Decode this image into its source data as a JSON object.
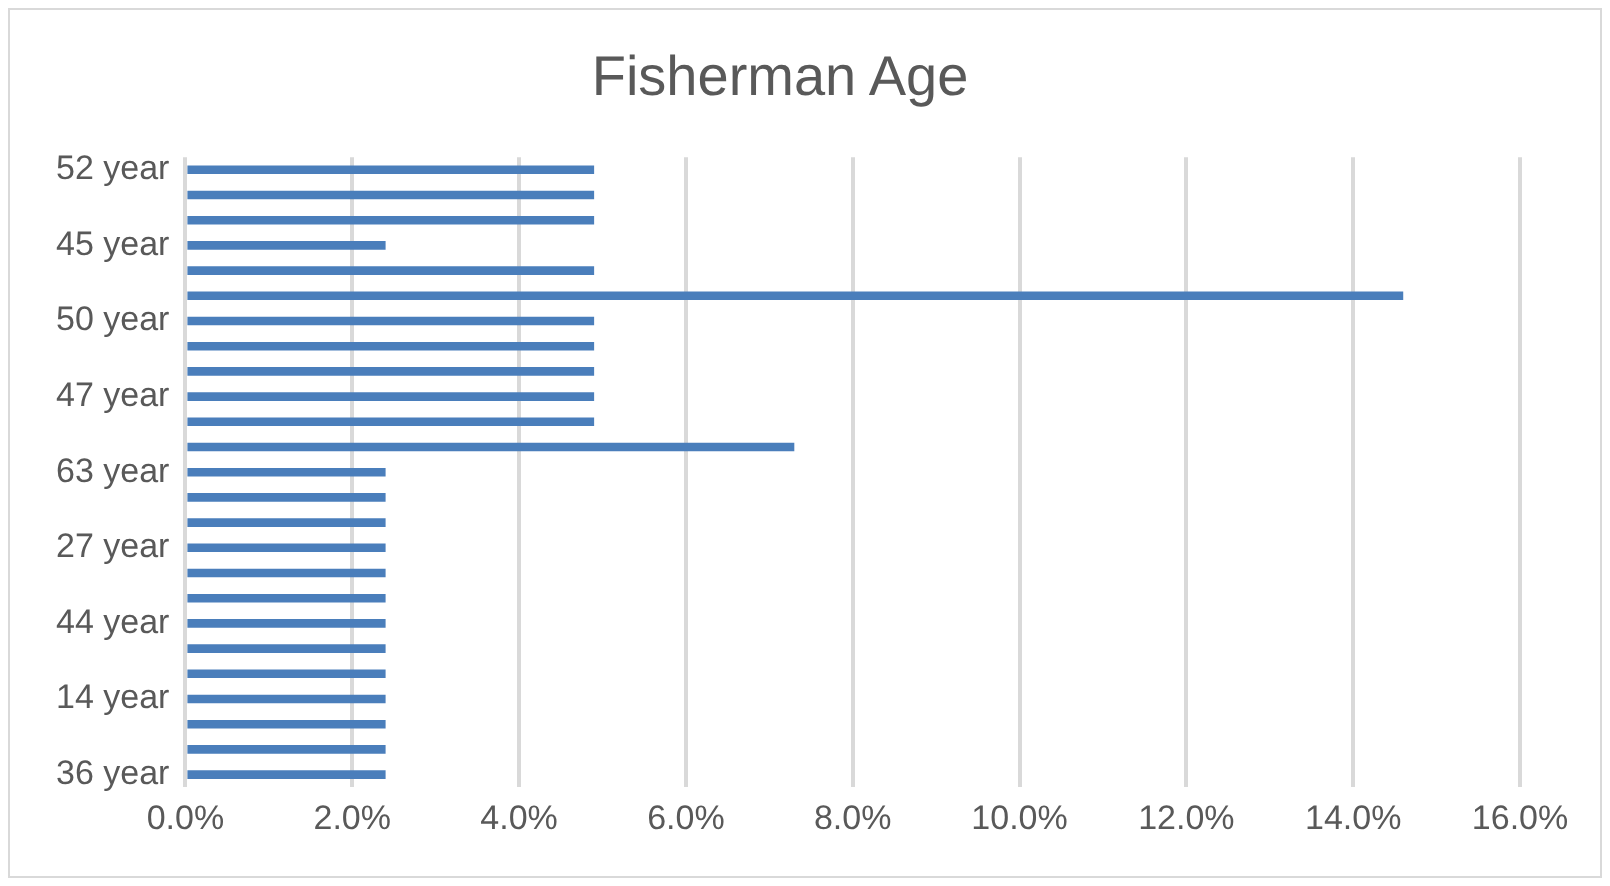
{
  "chart_data": {
    "type": "bar",
    "orientation": "horizontal",
    "title": "Fisherman Age",
    "categories": [
      "52 year",
      null,
      null,
      "45 year",
      null,
      null,
      "50 year",
      null,
      null,
      "47 year",
      null,
      null,
      "63 year",
      null,
      null,
      "27 year",
      null,
      null,
      "44 year",
      null,
      null,
      "14 year",
      null,
      null,
      "36 year"
    ],
    "values": [
      4.9,
      4.9,
      4.9,
      2.4,
      4.9,
      14.6,
      4.9,
      4.9,
      4.9,
      4.9,
      4.9,
      7.3,
      2.4,
      2.4,
      2.4,
      2.4,
      2.4,
      2.4,
      2.4,
      2.4,
      2.4,
      2.4,
      2.4,
      2.4,
      2.4
    ],
    "color": "#4a7ebb",
    "xlim": [
      0,
      16
    ],
    "xticks": [
      {
        "value": 0,
        "label": "0.0%"
      },
      {
        "value": 2,
        "label": "2.0%"
      },
      {
        "value": 4,
        "label": "4.0%"
      },
      {
        "value": 6,
        "label": "6.0%"
      },
      {
        "value": 8,
        "label": "8.0%"
      },
      {
        "value": 10,
        "label": "10.0%"
      },
      {
        "value": 12,
        "label": "12.0%"
      },
      {
        "value": 14,
        "label": "14.0%"
      },
      {
        "value": 16,
        "label": "16.0%"
      }
    ],
    "grid": "x",
    "legend": false
  }
}
